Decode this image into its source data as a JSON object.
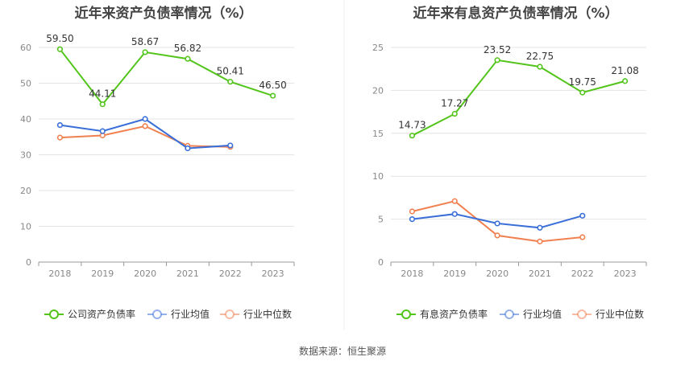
{
  "source": "数据来源：恒生聚源",
  "colors": {
    "company": "#52c41a",
    "average": "#3a6fd8",
    "median": "#f08050",
    "grid": "#e4e4e4",
    "axis": "#888888",
    "title": "#444444"
  },
  "chart_data": [
    {
      "type": "line",
      "title": "近年来资产负债率情况（%）",
      "categories": [
        "2018",
        "2019",
        "2020",
        "2021",
        "2022",
        "2023"
      ],
      "ylim": [
        0,
        60
      ],
      "yticks": [
        0,
        10,
        20,
        30,
        40,
        50,
        60
      ],
      "grid": true,
      "legend": "bottom",
      "series": [
        {
          "name": "公司资产负债率",
          "color_key": "company",
          "labeled": true,
          "values": [
            59.5,
            44.11,
            58.67,
            56.82,
            50.41,
            46.5
          ],
          "labels": [
            "59.50",
            "44.11",
            "58.67",
            "56.82",
            "50.41",
            "46.50"
          ]
        },
        {
          "name": "行业均值",
          "color_key": "average",
          "labeled": false,
          "values": [
            38.3,
            36.6,
            40.0,
            31.8,
            32.6,
            null
          ]
        },
        {
          "name": "行业中位数",
          "color_key": "median",
          "labeled": false,
          "values": [
            34.8,
            35.4,
            38.0,
            32.5,
            32.2,
            null
          ]
        }
      ]
    },
    {
      "type": "line",
      "title": "近年来有息资产负债率情况（%）",
      "categories": [
        "2018",
        "2019",
        "2020",
        "2021",
        "2022",
        "2023"
      ],
      "ylim": [
        0,
        25
      ],
      "yticks": [
        0,
        5,
        10,
        15,
        20,
        25
      ],
      "grid": true,
      "legend": "bottom",
      "series": [
        {
          "name": "有息资产负债率",
          "color_key": "company",
          "labeled": true,
          "values": [
            14.73,
            17.27,
            23.52,
            22.75,
            19.75,
            21.08
          ],
          "labels": [
            "14.73",
            "17.27",
            "23.52",
            "22.75",
            "19.75",
            "21.08"
          ]
        },
        {
          "name": "行业均值",
          "color_key": "average",
          "labeled": false,
          "values": [
            5.0,
            5.6,
            4.5,
            4.0,
            5.4,
            null
          ]
        },
        {
          "name": "行业中位数",
          "color_key": "median",
          "labeled": false,
          "values": [
            5.9,
            7.1,
            3.1,
            2.4,
            2.9,
            null
          ]
        }
      ]
    }
  ]
}
